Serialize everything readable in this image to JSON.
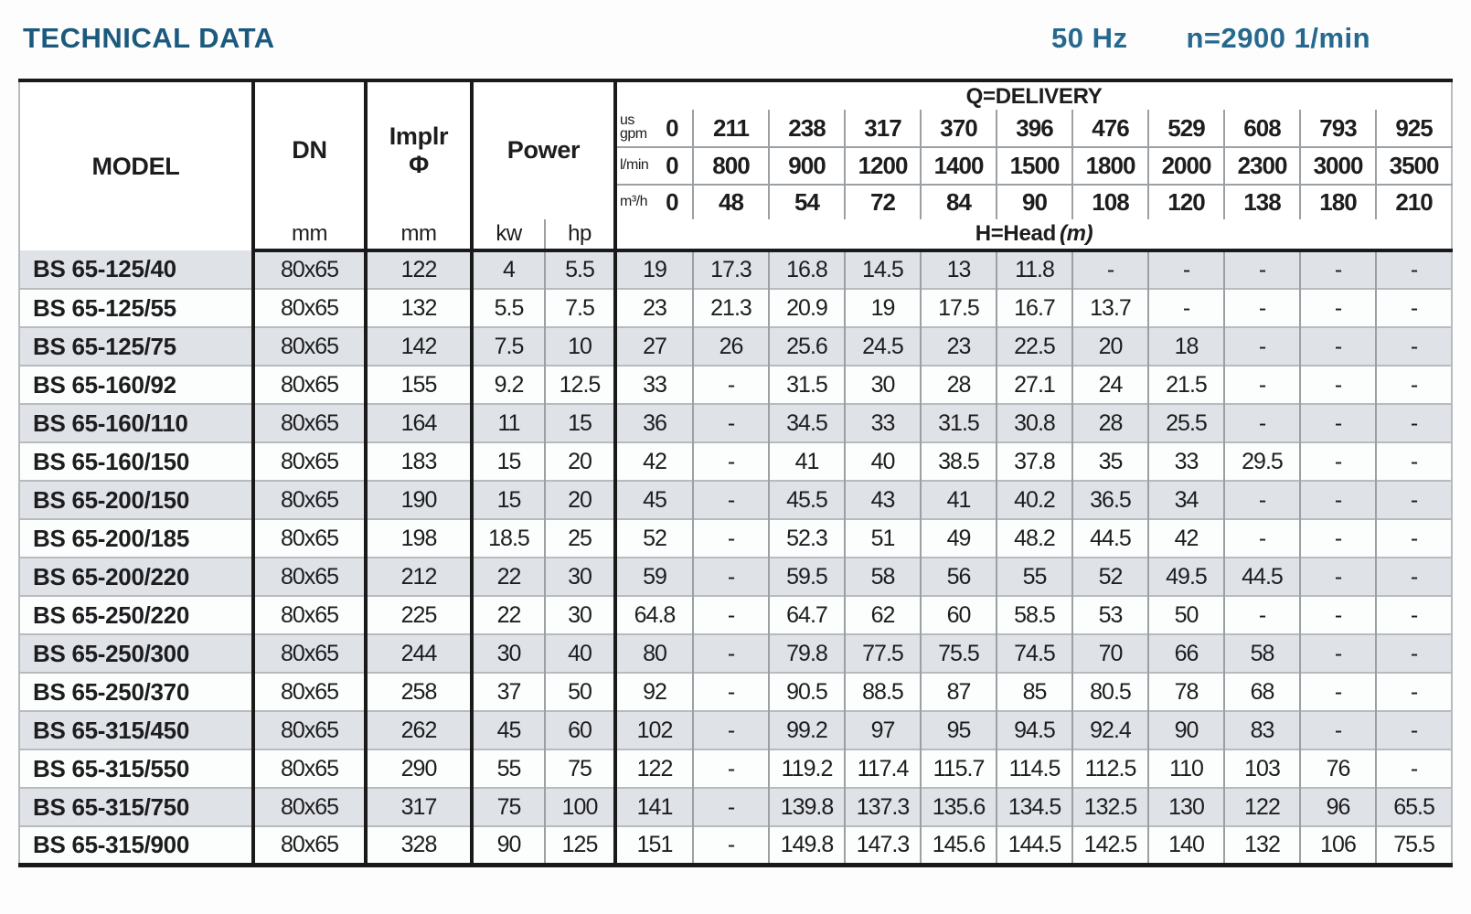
{
  "header": {
    "title": "TECHNICAL DATA",
    "frequency": "50 Hz",
    "speed": "n=2900 1/min"
  },
  "colors": {
    "title_blue": "#1c5a7d",
    "freq_blue": "#26698f",
    "stripe": "#dfe3e8",
    "grid_dark": "#1a1a1a",
    "grid_light": "#9ba0a5"
  },
  "table": {
    "column_headers": {
      "model": "MODEL",
      "dn": "DN",
      "dn_unit": "mm",
      "impeller_line1": "Implr",
      "impeller_line2": "Φ",
      "impeller_unit": "mm",
      "power": "Power",
      "power_unit_kw": "kw",
      "power_unit_hp": "hp",
      "delivery_title": "Q=DELIVERY",
      "head_title": "H=Head",
      "head_unit": "(m)"
    },
    "delivery_unit_rows": [
      {
        "label": "us\ngpm",
        "values": [
          "0",
          "211",
          "238",
          "317",
          "370",
          "396",
          "476",
          "529",
          "608",
          "793",
          "925"
        ]
      },
      {
        "label": "l/min",
        "values": [
          "0",
          "800",
          "900",
          "1200",
          "1400",
          "1500",
          "1800",
          "2000",
          "2300",
          "3000",
          "3500"
        ]
      },
      {
        "label": "m³/h",
        "values": [
          "0",
          "48",
          "54",
          "72",
          "84",
          "90",
          "108",
          "120",
          "138",
          "180",
          "210"
        ]
      }
    ],
    "rows": [
      {
        "model": "BS 65-125/40",
        "dn": "80x65",
        "implr": "122",
        "kw": "4",
        "hp": "5.5",
        "head": [
          "19",
          "17.3",
          "16.8",
          "14.5",
          "13",
          "11.8",
          "-",
          "-",
          "-",
          "-",
          "-"
        ]
      },
      {
        "model": "BS 65-125/55",
        "dn": "80x65",
        "implr": "132",
        "kw": "5.5",
        "hp": "7.5",
        "head": [
          "23",
          "21.3",
          "20.9",
          "19",
          "17.5",
          "16.7",
          "13.7",
          "-",
          "-",
          "-",
          "-"
        ]
      },
      {
        "model": "BS 65-125/75",
        "dn": "80x65",
        "implr": "142",
        "kw": "7.5",
        "hp": "10",
        "head": [
          "27",
          "26",
          "25.6",
          "24.5",
          "23",
          "22.5",
          "20",
          "18",
          "-",
          "-",
          "-"
        ]
      },
      {
        "model": "BS 65-160/92",
        "dn": "80x65",
        "implr": "155",
        "kw": "9.2",
        "hp": "12.5",
        "head": [
          "33",
          "-",
          "31.5",
          "30",
          "28",
          "27.1",
          "24",
          "21.5",
          "-",
          "-",
          "-"
        ]
      },
      {
        "model": "BS 65-160/110",
        "dn": "80x65",
        "implr": "164",
        "kw": "11",
        "hp": "15",
        "head": [
          "36",
          "-",
          "34.5",
          "33",
          "31.5",
          "30.8",
          "28",
          "25.5",
          "-",
          "-",
          "-"
        ]
      },
      {
        "model": "BS 65-160/150",
        "dn": "80x65",
        "implr": "183",
        "kw": "15",
        "hp": "20",
        "head": [
          "42",
          "-",
          "41",
          "40",
          "38.5",
          "37.8",
          "35",
          "33",
          "29.5",
          "-",
          "-"
        ]
      },
      {
        "model": "BS 65-200/150",
        "dn": "80x65",
        "implr": "190",
        "kw": "15",
        "hp": "20",
        "head": [
          "45",
          "-",
          "45.5",
          "43",
          "41",
          "40.2",
          "36.5",
          "34",
          "-",
          "-",
          "-"
        ]
      },
      {
        "model": "BS 65-200/185",
        "dn": "80x65",
        "implr": "198",
        "kw": "18.5",
        "hp": "25",
        "head": [
          "52",
          "-",
          "52.3",
          "51",
          "49",
          "48.2",
          "44.5",
          "42",
          "-",
          "-",
          "-"
        ]
      },
      {
        "model": "BS 65-200/220",
        "dn": "80x65",
        "implr": "212",
        "kw": "22",
        "hp": "30",
        "head": [
          "59",
          "-",
          "59.5",
          "58",
          "56",
          "55",
          "52",
          "49.5",
          "44.5",
          "-",
          "-"
        ]
      },
      {
        "model": "BS 65-250/220",
        "dn": "80x65",
        "implr": "225",
        "kw": "22",
        "hp": "30",
        "head": [
          "64.8",
          "-",
          "64.7",
          "62",
          "60",
          "58.5",
          "53",
          "50",
          "-",
          "-",
          "-"
        ]
      },
      {
        "model": "BS 65-250/300",
        "dn": "80x65",
        "implr": "244",
        "kw": "30",
        "hp": "40",
        "head": [
          "80",
          "-",
          "79.8",
          "77.5",
          "75.5",
          "74.5",
          "70",
          "66",
          "58",
          "-",
          "-"
        ]
      },
      {
        "model": "BS 65-250/370",
        "dn": "80x65",
        "implr": "258",
        "kw": "37",
        "hp": "50",
        "head": [
          "92",
          "-",
          "90.5",
          "88.5",
          "87",
          "85",
          "80.5",
          "78",
          "68",
          "-",
          "-"
        ]
      },
      {
        "model": "BS 65-315/450",
        "dn": "80x65",
        "implr": "262",
        "kw": "45",
        "hp": "60",
        "head": [
          "102",
          "-",
          "99.2",
          "97",
          "95",
          "94.5",
          "92.4",
          "90",
          "83",
          "-",
          "-"
        ]
      },
      {
        "model": "BS 65-315/550",
        "dn": "80x65",
        "implr": "290",
        "kw": "55",
        "hp": "75",
        "head": [
          "122",
          "-",
          "119.2",
          "117.4",
          "115.7",
          "114.5",
          "112.5",
          "110",
          "103",
          "76",
          "-"
        ]
      },
      {
        "model": "BS 65-315/750",
        "dn": "80x65",
        "implr": "317",
        "kw": "75",
        "hp": "100",
        "head": [
          "141",
          "-",
          "139.8",
          "137.3",
          "135.6",
          "134.5",
          "132.5",
          "130",
          "122",
          "96",
          "65.5"
        ]
      },
      {
        "model": "BS 65-315/900",
        "dn": "80x65",
        "implr": "328",
        "kw": "90",
        "hp": "125",
        "head": [
          "151",
          "-",
          "149.8",
          "147.3",
          "145.6",
          "144.5",
          "142.5",
          "140",
          "132",
          "106",
          "75.5"
        ]
      }
    ]
  }
}
